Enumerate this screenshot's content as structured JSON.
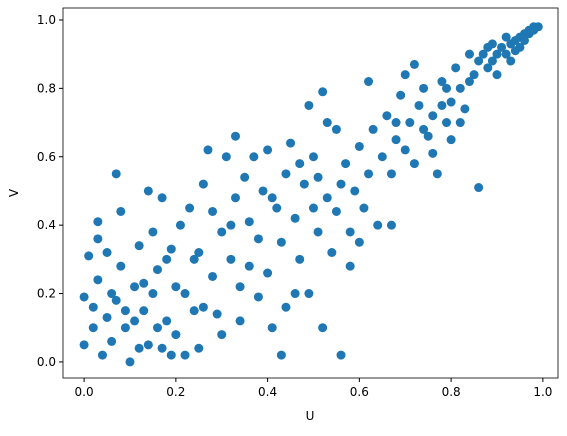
{
  "chart_data": {
    "type": "scatter",
    "xlabel": "U",
    "ylabel": "V",
    "color": "#1f77b4",
    "x": [
      0.0,
      0.01,
      0.02,
      0.03,
      0.03,
      0.03,
      0.04,
      0.05,
      0.06,
      0.07,
      0.07,
      0.08,
      0.08,
      0.09,
      0.1,
      0.11,
      0.12,
      0.13,
      0.14,
      0.14,
      0.15,
      0.16,
      0.17,
      0.17,
      0.18,
      0.19,
      0.2,
      0.2,
      0.0,
      0.02,
      0.05,
      0.06,
      0.09,
      0.11,
      0.12,
      0.15,
      0.16,
      0.18,
      0.19,
      0.13,
      0.21,
      0.22,
      0.23,
      0.24,
      0.25,
      0.25,
      0.26,
      0.27,
      0.28,
      0.29,
      0.3,
      0.31,
      0.32,
      0.33,
      0.33,
      0.34,
      0.35,
      0.36,
      0.36,
      0.37,
      0.38,
      0.39,
      0.4,
      0.4,
      0.41,
      0.42,
      0.43,
      0.43,
      0.44,
      0.45,
      0.22,
      0.24,
      0.28,
      0.3,
      0.34,
      0.38,
      0.41,
      0.44,
      0.26,
      0.32,
      0.46,
      0.47,
      0.48,
      0.49,
      0.49,
      0.5,
      0.51,
      0.52,
      0.52,
      0.53,
      0.54,
      0.55,
      0.55,
      0.56,
      0.57,
      0.58,
      0.58,
      0.59,
      0.6,
      0.61,
      0.62,
      0.62,
      0.63,
      0.64,
      0.65,
      0.47,
      0.5,
      0.53,
      0.56,
      0.6,
      0.46,
      0.51,
      0.66,
      0.67,
      0.67,
      0.68,
      0.69,
      0.7,
      0.7,
      0.71,
      0.72,
      0.73,
      0.74,
      0.75,
      0.76,
      0.77,
      0.78,
      0.79,
      0.8,
      0.8,
      0.81,
      0.82,
      0.83,
      0.84,
      0.85,
      0.86,
      0.72,
      0.76,
      0.78,
      0.82,
      0.68,
      0.74,
      0.79,
      0.84,
      0.86,
      0.87,
      0.88,
      0.88,
      0.89,
      0.9,
      0.9,
      0.91,
      0.92,
      0.93,
      0.93,
      0.94,
      0.95,
      0.95,
      0.96,
      0.97,
      0.97,
      0.98,
      0.98,
      0.99,
      0.94,
      0.96,
      0.89,
      0.92
    ],
    "values": [
      0.19,
      0.31,
      0.1,
      0.24,
      0.36,
      0.41,
      0.02,
      0.13,
      0.06,
      0.55,
      0.18,
      0.44,
      0.28,
      0.1,
      0.0,
      0.22,
      0.04,
      0.15,
      0.5,
      0.05,
      0.38,
      0.27,
      0.04,
      0.48,
      0.12,
      0.33,
      0.22,
      0.08,
      0.05,
      0.16,
      0.32,
      0.2,
      0.15,
      0.12,
      0.34,
      0.2,
      0.1,
      0.3,
      0.02,
      0.23,
      0.4,
      0.2,
      0.45,
      0.15,
      0.32,
      0.04,
      0.52,
      0.62,
      0.25,
      0.14,
      0.38,
      0.6,
      0.3,
      0.66,
      0.48,
      0.12,
      0.54,
      0.28,
      0.41,
      0.6,
      0.19,
      0.5,
      0.26,
      0.62,
      0.1,
      0.45,
      0.35,
      0.02,
      0.55,
      0.64,
      0.02,
      0.3,
      0.44,
      0.08,
      0.22,
      0.36,
      0.48,
      0.16,
      0.16,
      0.4,
      0.42,
      0.3,
      0.52,
      0.2,
      0.75,
      0.6,
      0.38,
      0.1,
      0.79,
      0.48,
      0.32,
      0.68,
      0.44,
      0.02,
      0.58,
      0.38,
      0.28,
      0.5,
      0.63,
      0.45,
      0.82,
      0.55,
      0.68,
      0.4,
      0.6,
      0.58,
      0.45,
      0.7,
      0.52,
      0.35,
      0.2,
      0.54,
      0.72,
      0.55,
      0.4,
      0.65,
      0.78,
      0.62,
      0.84,
      0.7,
      0.58,
      0.75,
      0.8,
      0.66,
      0.72,
      0.55,
      0.82,
      0.7,
      0.76,
      0.65,
      0.86,
      0.8,
      0.74,
      0.9,
      0.84,
      0.51,
      0.87,
      0.61,
      0.75,
      0.7,
      0.7,
      0.68,
      0.8,
      0.82,
      0.88,
      0.9,
      0.86,
      0.92,
      0.88,
      0.9,
      0.84,
      0.92,
      0.9,
      0.93,
      0.88,
      0.94,
      0.95,
      0.92,
      0.96,
      0.96,
      0.97,
      0.98,
      0.97,
      0.98,
      0.91,
      0.94,
      0.93,
      0.95
    ],
    "xlim": [
      -0.046,
      1.033
    ],
    "ylim": [
      -0.047,
      1.035
    ],
    "xticks": [
      {
        "value": 0,
        "label": "0.0"
      },
      {
        "value": 0.2,
        "label": "0.2"
      },
      {
        "value": 0.4,
        "label": "0.4"
      },
      {
        "value": 0.6,
        "label": "0.6"
      },
      {
        "value": 0.8,
        "label": "0.8"
      },
      {
        "value": 1,
        "label": "1.0"
      }
    ],
    "yticks": [
      {
        "value": 0,
        "label": "0.0"
      },
      {
        "value": 0.2,
        "label": "0.2"
      },
      {
        "value": 0.4,
        "label": "0.4"
      },
      {
        "value": 0.6,
        "label": "0.6"
      },
      {
        "value": 0.8,
        "label": "0.8"
      },
      {
        "value": 1,
        "label": "1.0"
      }
    ],
    "grid": false
  }
}
